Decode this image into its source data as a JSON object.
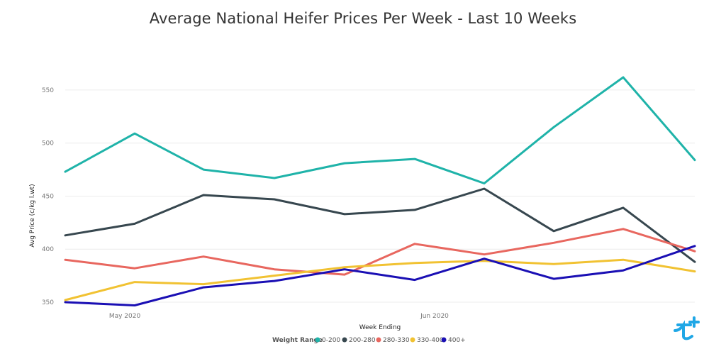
{
  "chart_data": {
    "type": "line",
    "title": "Average National Heifer Prices Per Week - Last 10 Weeks",
    "xlabel": "Week Ending",
    "ylabel": "Avg Price (c/kg l.wt)",
    "x_tick_labels": [
      "May 2020",
      "Jun 2020"
    ],
    "y_ticks": [
      350,
      400,
      450,
      500,
      550
    ],
    "ylim": [
      346,
      568
    ],
    "grid": true,
    "legend": {
      "title": "Weight Range",
      "position": "bottom-center"
    },
    "x": [
      0,
      1,
      2,
      3,
      4,
      5,
      6,
      7,
      8,
      9
    ],
    "series": [
      {
        "name": "0-200",
        "color": "#1fb3a9",
        "values": [
          473,
          509,
          475,
          467,
          481,
          485,
          462,
          515,
          562,
          484
        ]
      },
      {
        "name": "200-280",
        "color": "#37474f",
        "values": [
          413,
          424,
          451,
          447,
          433,
          437,
          457,
          417,
          439,
          388
        ]
      },
      {
        "name": "280-330",
        "color": "#e8675f",
        "values": [
          390,
          382,
          393,
          381,
          376,
          405,
          395,
          406,
          419,
          398
        ]
      },
      {
        "name": "330-400",
        "color": "#f1c232",
        "values": [
          352,
          369,
          367,
          375,
          383,
          387,
          389,
          386,
          390,
          379
        ]
      },
      {
        "name": "400+",
        "color": "#1a0fb4",
        "values": [
          350,
          347,
          364,
          370,
          381,
          371,
          391,
          372,
          380,
          403
        ]
      }
    ]
  },
  "brand_logo": {
    "name": "logo-icon",
    "color": "#1fa7e6"
  }
}
